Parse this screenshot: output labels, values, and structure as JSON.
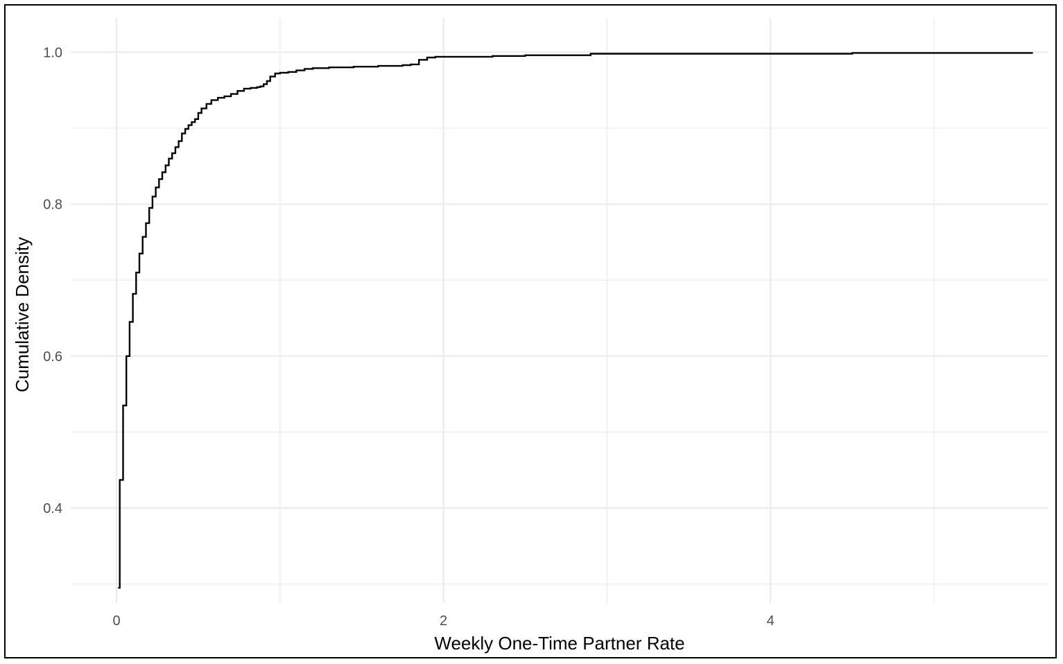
{
  "chart_data": {
    "type": "line",
    "step": true,
    "title": "",
    "xlabel": "Weekly One-Time Partner Rate",
    "ylabel": "Cumulative Density",
    "xlim": [
      -0.28,
      5.7
    ],
    "ylim": [
      0.275,
      1.045
    ],
    "x_ticks": [
      0,
      2,
      4
    ],
    "x_tick_labels": [
      "0",
      "2",
      "4"
    ],
    "y_ticks": [
      0.4,
      0.6,
      0.8,
      1.0
    ],
    "y_tick_labels": [
      "0.4",
      "0.6",
      "0.8",
      "1.0"
    ],
    "x_minor_gridlines": [
      1,
      3,
      5
    ],
    "y_minor_gridlines": [
      0.3,
      0.5,
      0.7,
      0.9
    ],
    "grid": true,
    "legend": "none",
    "line_color": "#000000",
    "grid_color": "#ebebeb",
    "series": [
      {
        "x": [
          0.01,
          0.02,
          0.04,
          0.06,
          0.08,
          0.1,
          0.12,
          0.14,
          0.16,
          0.18,
          0.2,
          0.22,
          0.24,
          0.26,
          0.28,
          0.3,
          0.32,
          0.34,
          0.36,
          0.38,
          0.4,
          0.42,
          0.44,
          0.46,
          0.48,
          0.5,
          0.52,
          0.55,
          0.58,
          0.62,
          0.66,
          0.7,
          0.74,
          0.78,
          0.82,
          0.86,
          0.88,
          0.9,
          0.92,
          0.94,
          0.97,
          1.0,
          1.05,
          1.1,
          1.15,
          1.2,
          1.3,
          1.45,
          1.6,
          1.75,
          1.8,
          1.85,
          1.9,
          1.95,
          2.1,
          2.3,
          2.5,
          2.8,
          2.9,
          3.3,
          3.9,
          4.5,
          5.0,
          5.6
        ],
        "y": [
          0.295,
          0.437,
          0.535,
          0.6,
          0.645,
          0.682,
          0.71,
          0.735,
          0.757,
          0.775,
          0.795,
          0.81,
          0.822,
          0.833,
          0.842,
          0.851,
          0.86,
          0.867,
          0.875,
          0.883,
          0.893,
          0.899,
          0.904,
          0.908,
          0.912,
          0.92,
          0.926,
          0.932,
          0.937,
          0.94,
          0.942,
          0.945,
          0.949,
          0.952,
          0.953,
          0.954,
          0.955,
          0.958,
          0.962,
          0.968,
          0.972,
          0.973,
          0.974,
          0.976,
          0.978,
          0.979,
          0.98,
          0.981,
          0.982,
          0.983,
          0.984,
          0.99,
          0.993,
          0.994,
          0.994,
          0.995,
          0.996,
          0.996,
          0.998,
          0.998,
          0.998,
          0.999,
          0.999,
          1.0
        ]
      }
    ]
  }
}
